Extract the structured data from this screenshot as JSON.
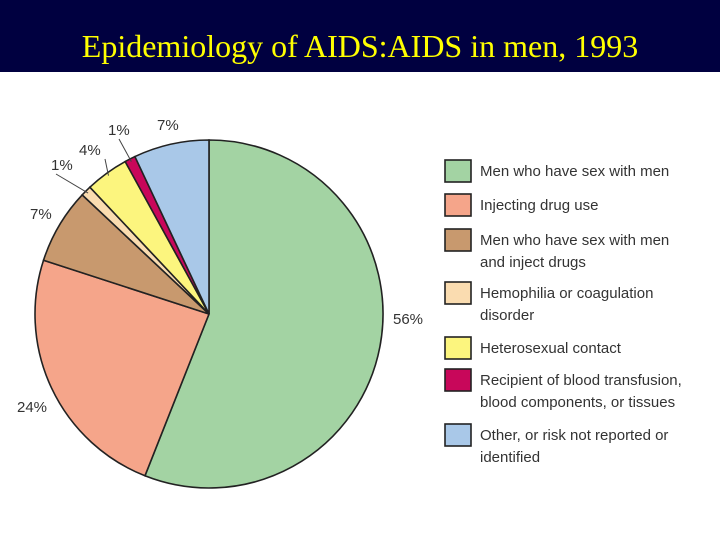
{
  "title": "Epidemiology of AIDS:AIDS in men, 1993",
  "chart_data": {
    "type": "pie",
    "categories": [
      "Men who have sex with men",
      "Injecting drug use",
      "Men who have sex with men and inject drugs",
      "Hemophilia or coagulation disorder",
      "Heterosexual contact",
      "Recipient of blood transfusion, blood components, or tissues",
      "Other, or risk not reported or identified"
    ],
    "legend_lines": [
      [
        "Men who have sex with men"
      ],
      [
        "Injecting drug use"
      ],
      [
        "Men who have sex with men",
        "and inject drugs"
      ],
      [
        "Hemophilia or coagulation",
        "disorder"
      ],
      [
        "Heterosexual contact"
      ],
      [
        "Recipient of blood transfusion,",
        "blood components, or tissues"
      ],
      [
        "Other, or risk not reported or",
        "identified"
      ]
    ],
    "values": [
      56,
      24,
      7,
      1,
      4,
      1,
      7
    ],
    "labels": [
      "56%",
      "24%",
      "7%",
      "1%",
      "4%",
      "1%",
      "7%"
    ],
    "colors": [
      "#a3d3a3",
      "#f5a58a",
      "#c8996e",
      "#fadcb0",
      "#fcf57e",
      "#c8075a",
      "#a9c8e8"
    ],
    "legend_position": "right"
  }
}
